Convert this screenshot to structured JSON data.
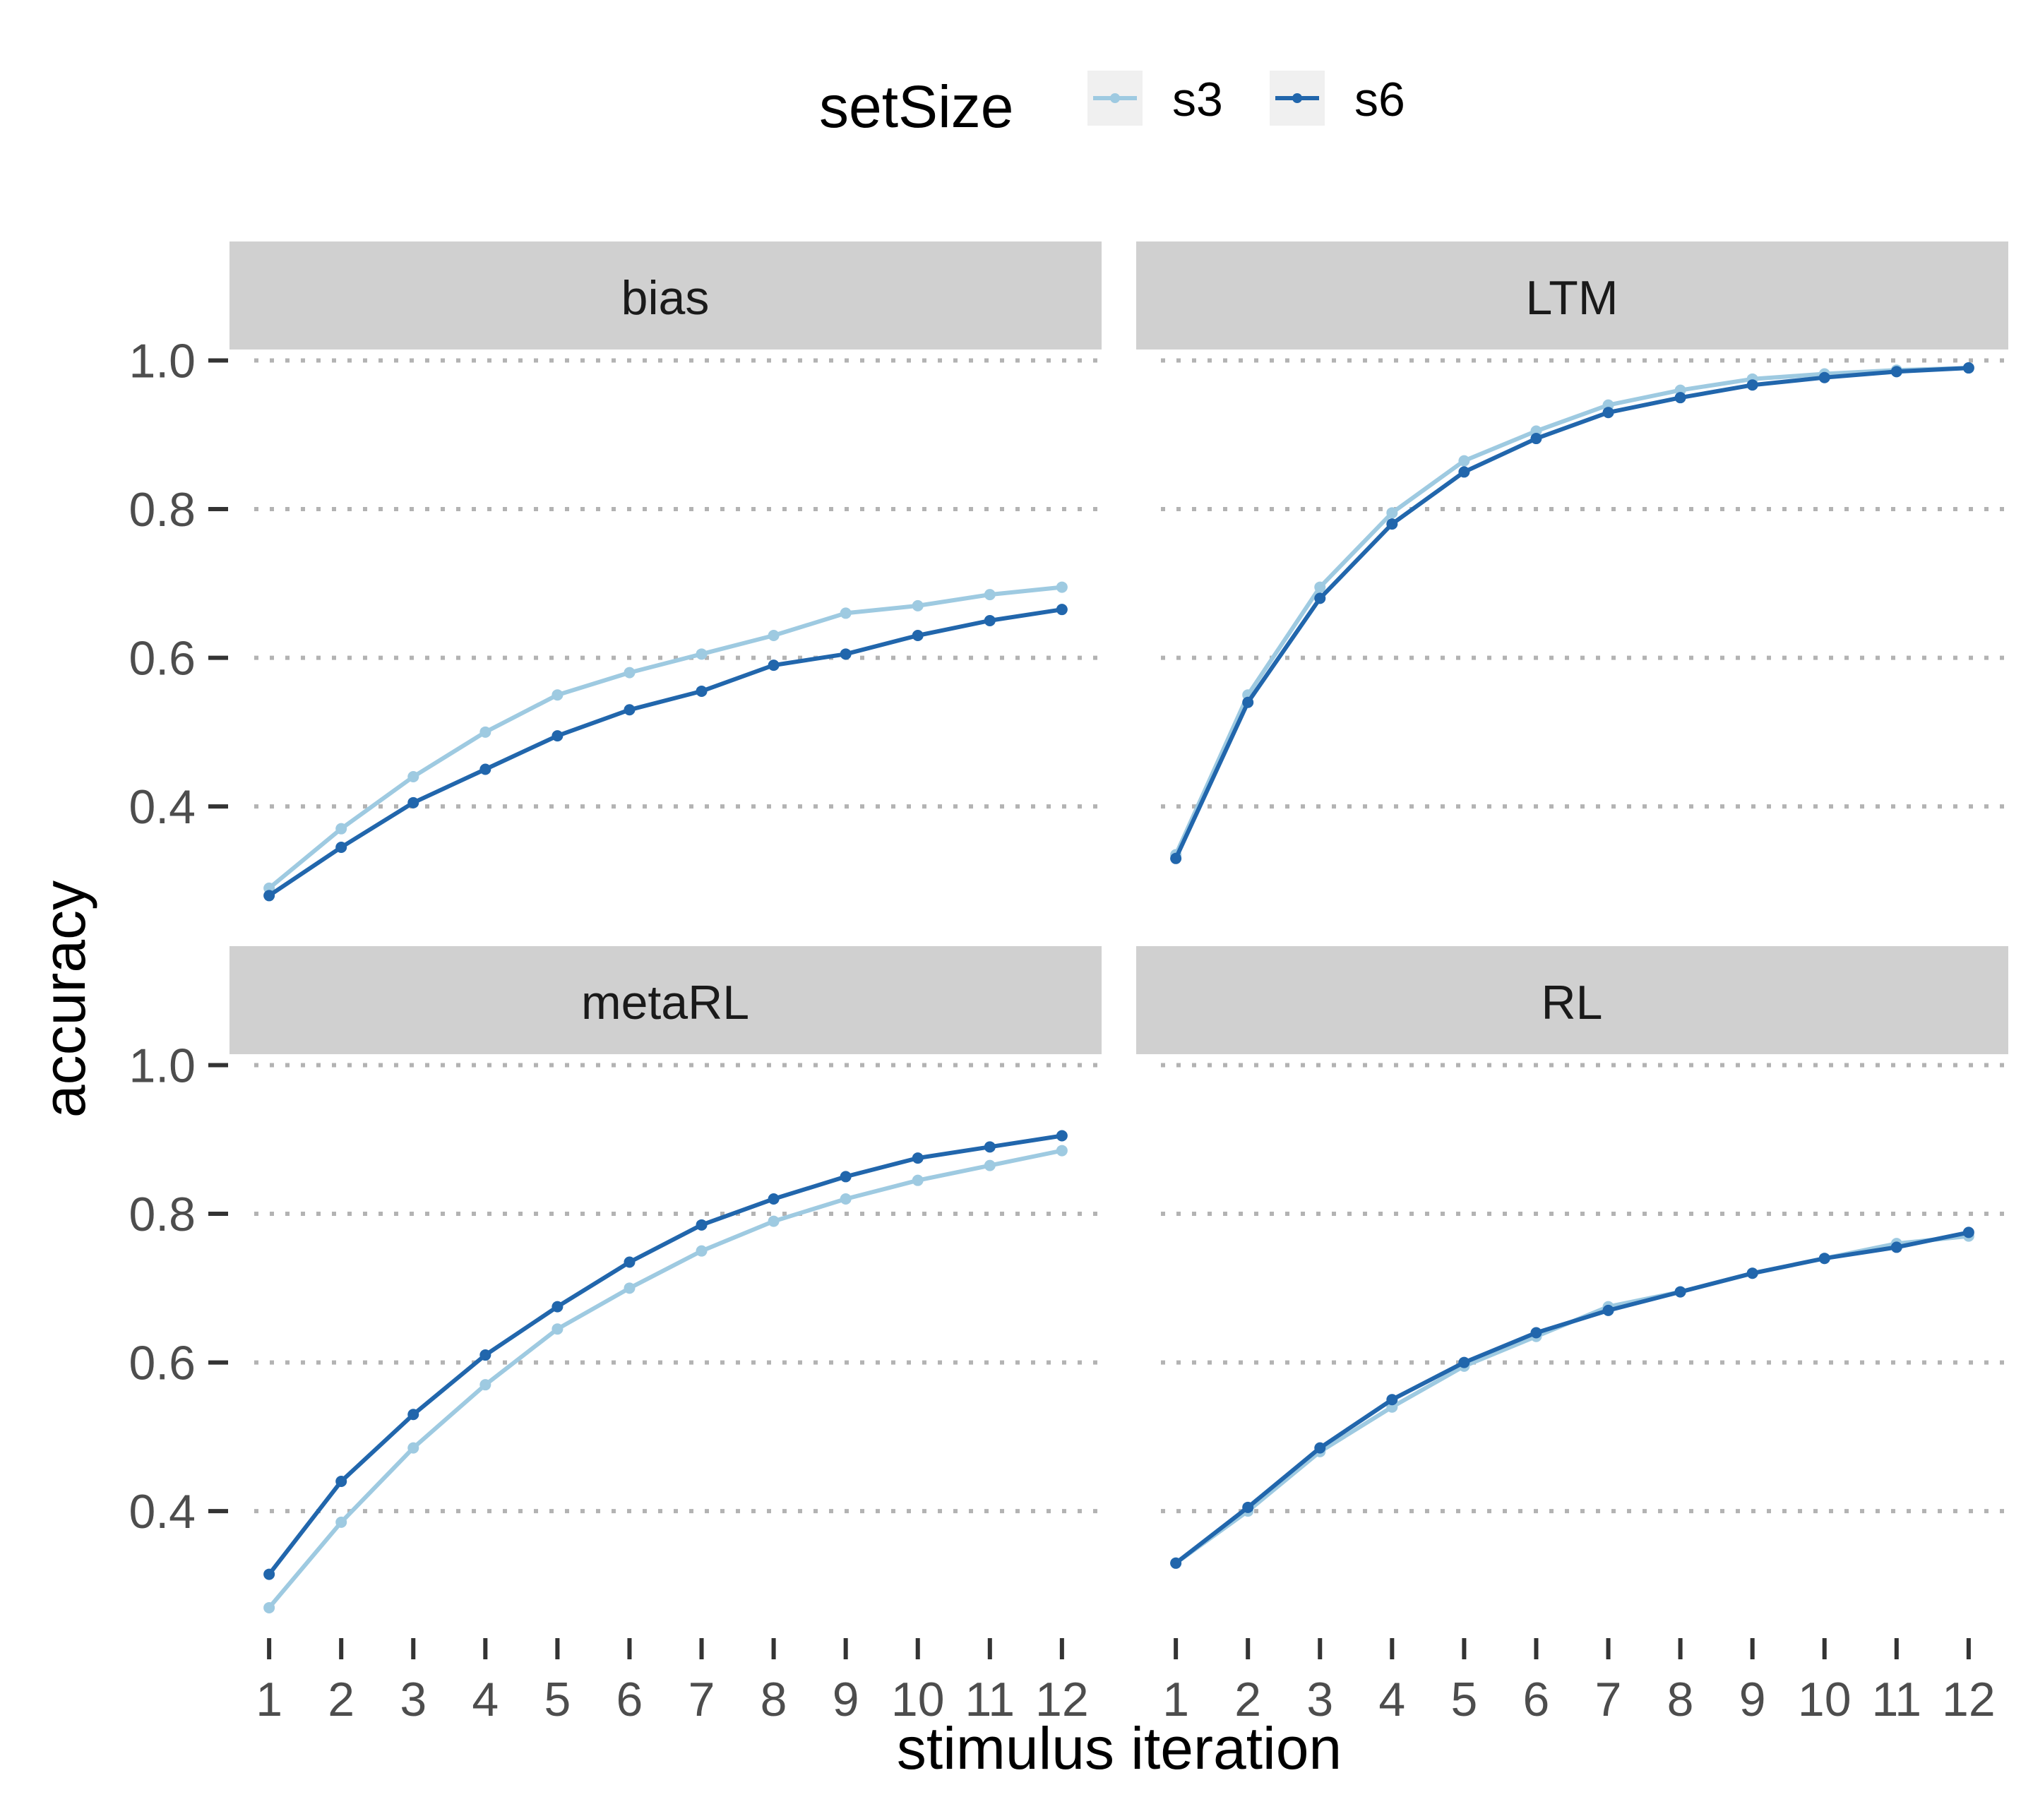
{
  "chart_data": {
    "type": "line",
    "xlabel": "stimulus iteration",
    "ylabel": "accuracy",
    "x": [
      1,
      2,
      3,
      4,
      5,
      6,
      7,
      8,
      9,
      10,
      11,
      12
    ],
    "x_tick_labels": [
      "1",
      "2",
      "3",
      "4",
      "5",
      "6",
      "7",
      "8",
      "9",
      "10",
      "11",
      "12"
    ],
    "y_ticks": [
      0.4,
      0.6,
      0.8,
      1.0
    ],
    "y_tick_labels": [
      "0.4",
      "0.6",
      "0.8",
      "1.0"
    ],
    "ylim": [
      0.25,
      1.01
    ],
    "xlim": [
      0.45,
      12.55
    ],
    "grid": "horizontal-dotted",
    "legend": {
      "title": "setSize",
      "position": "top",
      "entries": [
        {
          "name": "s3",
          "color": "#9ecae1"
        },
        {
          "name": "s6",
          "color": "#2166ac"
        }
      ]
    },
    "panels": [
      {
        "name": "bias",
        "series": [
          {
            "name": "s3",
            "color": "#9ecae1",
            "values": [
              0.29,
              0.37,
              0.44,
              0.5,
              0.55,
              0.58,
              0.605,
              0.63,
              0.66,
              0.67,
              0.685,
              0.695
            ]
          },
          {
            "name": "s6",
            "color": "#2166ac",
            "values": [
              0.28,
              0.345,
              0.405,
              0.45,
              0.495,
              0.53,
              0.555,
              0.59,
              0.605,
              0.63,
              0.65,
              0.665
            ]
          }
        ]
      },
      {
        "name": "LTM",
        "series": [
          {
            "name": "s3",
            "color": "#9ecae1",
            "values": [
              0.335,
              0.55,
              0.695,
              0.795,
              0.865,
              0.905,
              0.94,
              0.96,
              0.975,
              0.982,
              0.987,
              0.99
            ]
          },
          {
            "name": "s6",
            "color": "#2166ac",
            "values": [
              0.33,
              0.54,
              0.68,
              0.78,
              0.85,
              0.895,
              0.93,
              0.95,
              0.967,
              0.977,
              0.985,
              0.99
            ]
          }
        ]
      },
      {
        "name": "metaRL",
        "series": [
          {
            "name": "s3",
            "color": "#9ecae1",
            "values": [
              0.27,
              0.385,
              0.485,
              0.57,
              0.645,
              0.7,
              0.75,
              0.79,
              0.82,
              0.845,
              0.865,
              0.885
            ]
          },
          {
            "name": "s6",
            "color": "#2166ac",
            "values": [
              0.315,
              0.44,
              0.53,
              0.61,
              0.675,
              0.735,
              0.785,
              0.82,
              0.85,
              0.875,
              0.89,
              0.905
            ]
          }
        ]
      },
      {
        "name": "RL",
        "series": [
          {
            "name": "s3",
            "color": "#9ecae1",
            "values": [
              0.33,
              0.4,
              0.48,
              0.54,
              0.595,
              0.635,
              0.675,
              0.695,
              0.72,
              0.74,
              0.76,
              0.77
            ]
          },
          {
            "name": "s6",
            "color": "#2166ac",
            "values": [
              0.33,
              0.405,
              0.485,
              0.55,
              0.6,
              0.64,
              0.67,
              0.695,
              0.72,
              0.74,
              0.755,
              0.775
            ]
          }
        ]
      }
    ]
  }
}
